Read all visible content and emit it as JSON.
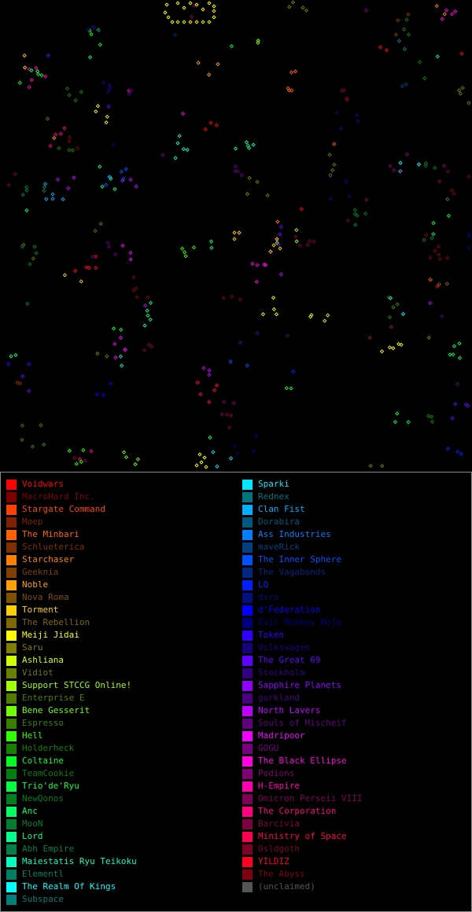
{
  "legend": {
    "left": [
      {
        "label": "Voidwars",
        "color": "#ff0000"
      },
      {
        "label": "MacroHard Inc.",
        "color": "#7f0000"
      },
      {
        "label": "Stargate Command",
        "color": "#ff4000"
      },
      {
        "label": "Moep",
        "color": "#7f2000"
      },
      {
        "label": "The Minbari",
        "color": "#ff6000"
      },
      {
        "label": "Schlueterica",
        "color": "#7f3000"
      },
      {
        "label": "Starchaser",
        "color": "#ff8000"
      },
      {
        "label": "Geeknia",
        "color": "#7f4000"
      },
      {
        "label": "Noble",
        "color": "#ffa000"
      },
      {
        "label": "Nova Roma",
        "color": "#7f5000"
      },
      {
        "label": "Torment",
        "color": "#ffd000"
      },
      {
        "label": "The Rebellion",
        "color": "#7f6800"
      },
      {
        "label": "Meiji Jidai",
        "color": "#ffff00"
      },
      {
        "label": "Saru",
        "color": "#7f7f00"
      },
      {
        "label": "Ashliana",
        "color": "#d0ff00"
      },
      {
        "label": "Vidiot",
        "color": "#687f00"
      },
      {
        "label": "Support STCCG Online!",
        "color": "#a0ff00"
      },
      {
        "label": "Enterprise E",
        "color": "#507f00"
      },
      {
        "label": "Bene Gesserit",
        "color": "#70ff00"
      },
      {
        "label": "Espresso",
        "color": "#387f00"
      },
      {
        "label": "Hell",
        "color": "#30ff00"
      },
      {
        "label": "Holderheck",
        "color": "#187f00"
      },
      {
        "label": "Coltaine",
        "color": "#00ff20"
      },
      {
        "label": "TeamCookie",
        "color": "#007f10"
      },
      {
        "label": "Trio'de'Ryu",
        "color": "#00ff40"
      },
      {
        "label": "NewQonos",
        "color": "#007f20"
      },
      {
        "label": "Anc",
        "color": "#00ff60"
      },
      {
        "label": "MooN",
        "color": "#007f30"
      },
      {
        "label": "Lord",
        "color": "#00ff90"
      },
      {
        "label": "Abh Empire",
        "color": "#007f48"
      },
      {
        "label": "Maiestatis Ryu Teikoku",
        "color": "#00ffc0"
      },
      {
        "label": "Elementl",
        "color": "#007f60"
      },
      {
        "label": "The Realm Of Kings",
        "color": "#00ffff"
      },
      {
        "label": "Subspace",
        "color": "#007f7f"
      }
    ],
    "right": [
      {
        "label": "Sparki",
        "color": "#00e8ff"
      },
      {
        "label": "Rednex",
        "color": "#00747f"
      },
      {
        "label": "Clan Fist",
        "color": "#00b0ff"
      },
      {
        "label": "Dorabira",
        "color": "#00587f"
      },
      {
        "label": "Ass Industries",
        "color": "#0080ff"
      },
      {
        "label": "maveRick",
        "color": "#00407f"
      },
      {
        "label": "The Inner Sphere",
        "color": "#0050ff"
      },
      {
        "label": "The Vagabonds",
        "color": "#00287f"
      },
      {
        "label": "LQ",
        "color": "#0020ff"
      },
      {
        "label": "dxro",
        "color": "#00107f"
      },
      {
        "label": "d'Federation",
        "color": "#0000ff"
      },
      {
        "label": "Evil Monkey Mojo",
        "color": "#00007f"
      },
      {
        "label": "Token",
        "color": "#3000ff"
      },
      {
        "label": "Volkswagen",
        "color": "#18007f"
      },
      {
        "label": "The Great 69",
        "color": "#6000ff"
      },
      {
        "label": "Stockholm",
        "color": "#30007f"
      },
      {
        "label": "Sapphire Planets",
        "color": "#9000ff"
      },
      {
        "label": "gurkland",
        "color": "#48007f"
      },
      {
        "label": "North Lavers",
        "color": "#c000ff"
      },
      {
        "label": "Souls of Mischeif",
        "color": "#60007f"
      },
      {
        "label": "Madripoor",
        "color": "#f000ff"
      },
      {
        "label": "GOGU",
        "color": "#78007f"
      },
      {
        "label": "The Black Ellipse",
        "color": "#ff00e0"
      },
      {
        "label": "Podions",
        "color": "#7f0070"
      },
      {
        "label": "H-Empire",
        "color": "#ff00b0"
      },
      {
        "label": "Omicron Perseii VIII",
        "color": "#7f0058"
      },
      {
        "label": "The Corporation",
        "color": "#ff0080"
      },
      {
        "label": "Barcivia",
        "color": "#7f0040"
      },
      {
        "label": "Ministry of Space",
        "color": "#ff0050"
      },
      {
        "label": "Osldgoth",
        "color": "#7f0028"
      },
      {
        "label": "YILDIZ",
        "color": "#ff0020"
      },
      {
        "label": "The Abyss",
        "color": "#7f0010"
      },
      {
        "label": "(unclaimed)",
        "color": "#555555"
      }
    ]
  }
}
